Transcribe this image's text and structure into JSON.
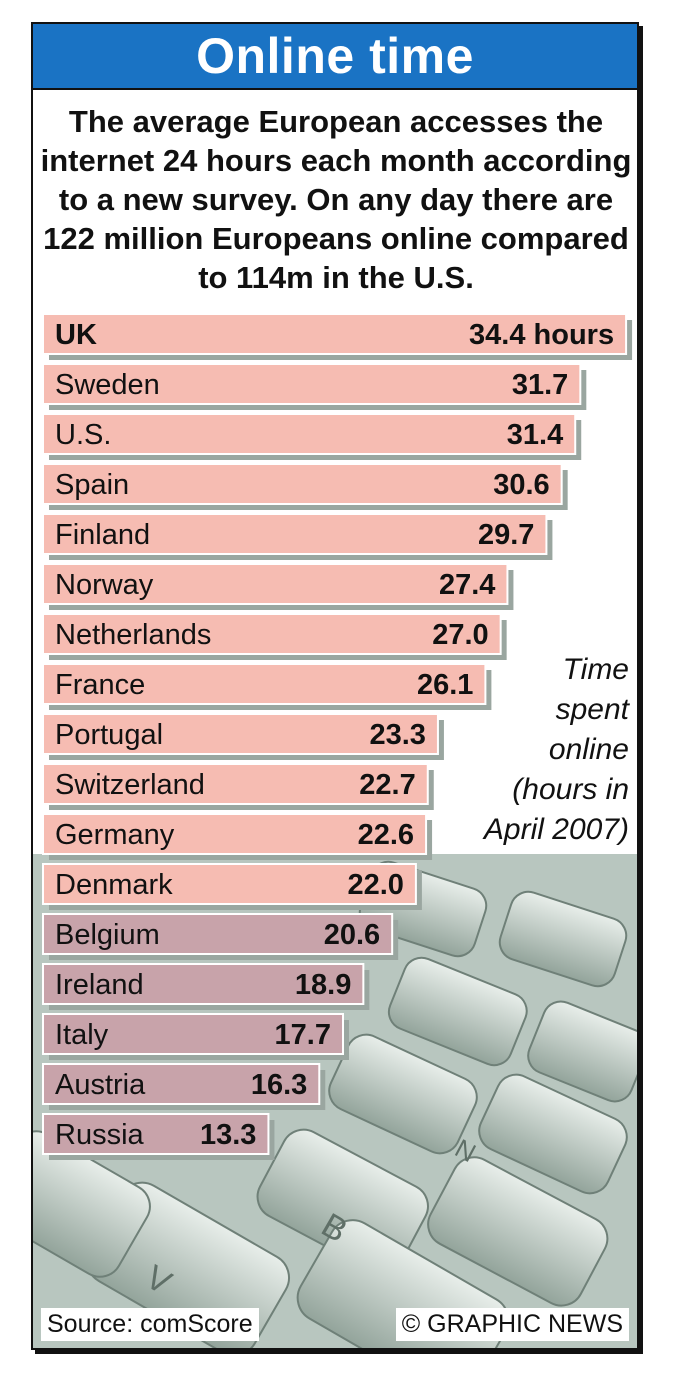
{
  "header": {
    "title": "Online time"
  },
  "intro": "The average European accesses the internet 24 hours each month according to a new survey. On any day there are 122 million Europeans online compared to 114m in the U.S.",
  "subtitle_lines": [
    "Time",
    "spent",
    "online",
    "(hours in",
    "April 2007)"
  ],
  "footer": {
    "source": "Source: comScore",
    "credit": "© GRAPHIC NEWS"
  },
  "colors": {
    "header": "#1a73c4",
    "bar": "#f6bcb2",
    "bar_shaded": "#c8a3aa",
    "bar_shadow": "#9aa6a0"
  },
  "chart_data": {
    "type": "bar",
    "orientation": "horizontal",
    "categories": [
      "UK",
      "Sweden",
      "U.S.",
      "Spain",
      "Finland",
      "Norway",
      "Netherlands",
      "France",
      "Portugal",
      "Switzerland",
      "Germany",
      "Denmark",
      "Belgium",
      "Ireland",
      "Italy",
      "Austria",
      "Russia"
    ],
    "values": [
      34.4,
      31.7,
      31.4,
      30.6,
      29.7,
      27.4,
      27.0,
      26.1,
      23.3,
      22.7,
      22.6,
      22.0,
      20.6,
      18.9,
      17.7,
      16.3,
      13.3
    ],
    "value_labels": [
      "34.4 hours",
      "31.7",
      "31.4",
      "30.6",
      "29.7",
      "27.4",
      "27.0",
      "26.1",
      "23.3",
      "22.7",
      "22.6",
      "22.0",
      "20.6",
      "18.9",
      "17.7",
      "16.3",
      "13.3"
    ],
    "bold_categories": [
      "UK"
    ]
  }
}
